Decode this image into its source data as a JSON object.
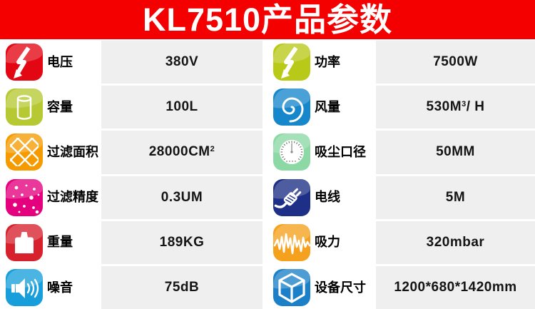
{
  "title": "KL7510产品参数",
  "colors": {
    "header_bg": "#f40000",
    "value_panel_bg": "#efefef",
    "text": "#141414"
  },
  "columns": [
    {
      "rows": [
        {
          "icon": "lightning-icon",
          "icon_color": "#e30613",
          "label": "电压",
          "value": "380V"
        },
        {
          "icon": "cylinder-icon",
          "icon_color": "#b7c932",
          "label": "容量",
          "value": "100L"
        },
        {
          "icon": "mesh-icon",
          "icon_color": "#f59b00",
          "label": "过滤面积",
          "value": "28000CM",
          "value_sup": "2"
        },
        {
          "icon": "dots-icon",
          "icon_color": "#e5007e",
          "label": "过滤精度",
          "value": "0.3UM"
        },
        {
          "icon": "weight-icon",
          "icon_color": "#d7222d",
          "label": "重量",
          "value": "189KG"
        },
        {
          "icon": "speaker-icon",
          "icon_color": "#189fdb",
          "label": "噪音",
          "value": "75dB"
        }
      ]
    },
    {
      "rows": [
        {
          "icon": "lightning-icon",
          "icon_color": "#b9c918",
          "label": "功率",
          "value": "7500W"
        },
        {
          "icon": "spiral-icon",
          "icon_color": "#1787cc",
          "label": "风量",
          "value": "530M",
          "value_sup": "3",
          "value_after": "/ H"
        },
        {
          "icon": "gauge-icon",
          "icon_color": "#8cd9a5",
          "label": "吸尘口径",
          "value": "50MM"
        },
        {
          "icon": "plug-icon",
          "icon_color": "#1d2f86",
          "label": "电线",
          "value": "5M"
        },
        {
          "icon": "waveform-icon",
          "icon_color": "#f5a11d",
          "label": "吸力",
          "value": "320mbar"
        },
        {
          "icon": "cube-icon",
          "icon_color": "#1b80c8",
          "label": "设备尺寸",
          "value": "1200*680*1420mm"
        }
      ]
    }
  ]
}
